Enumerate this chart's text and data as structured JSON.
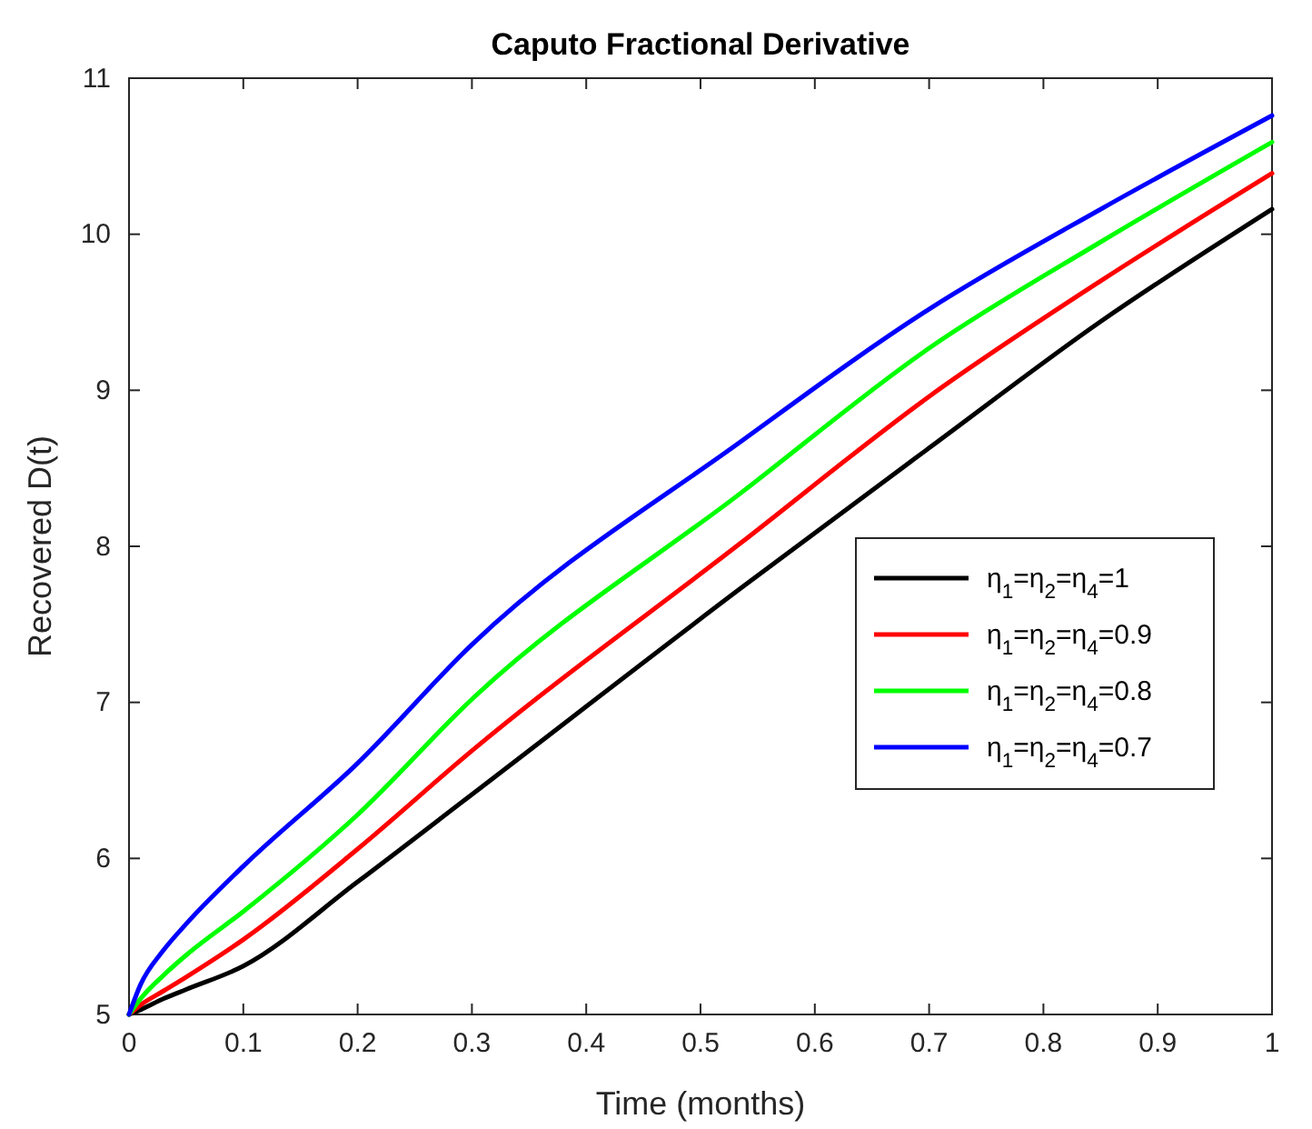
{
  "chart_data": {
    "type": "line",
    "title": "Caputo Fractional Derivative",
    "xlabel": "Time (months)",
    "ylabel": "Recovered D(t)",
    "x": [
      0,
      0.01,
      0.03,
      0.05,
      0.1,
      0.2,
      0.3,
      0.535,
      0.7,
      0.85,
      1
    ],
    "series": [
      {
        "name": "η$_{1}$=η$_{2}$=η$_{4}$=1",
        "color": "#000000",
        "values": [
          5,
          5.03,
          5.1,
          5.16,
          5.31,
          5.85,
          6.41,
          7.73,
          8.63,
          9.44,
          10.16
        ]
      },
      {
        "name": "η$_{1}$=η$_{2}$=η$_{4}$=0.9",
        "color": "#ff0000",
        "values": [
          5,
          5.06,
          5.15,
          5.24,
          5.48,
          6.06,
          6.69,
          8.02,
          8.96,
          9.7,
          10.39
        ]
      },
      {
        "name": "η$_{1}$=η$_{2}$=η$_{4}$=0.8",
        "color": "#00ff00",
        "values": [
          5,
          5.1,
          5.25,
          5.38,
          5.66,
          6.28,
          7.02,
          8.34,
          9.27,
          9.95,
          10.59
        ]
      },
      {
        "name": "η$_{1}$=η$_{2}$=η$_{4}$=0.7",
        "color": "#0000ff",
        "values": [
          5,
          5.19,
          5.41,
          5.58,
          5.95,
          6.61,
          7.37,
          8.67,
          9.52,
          10.16,
          10.76
        ]
      }
    ],
    "xlim": [
      0,
      1
    ],
    "ylim": [
      5,
      11
    ],
    "xticks": [
      0,
      0.1,
      0.2,
      0.3,
      0.4,
      0.5,
      0.6,
      0.7,
      0.8,
      0.9,
      1
    ],
    "yticks": [
      5,
      6,
      7,
      8,
      9,
      10,
      11
    ],
    "legend": "right",
    "grid": false,
    "marker": "none",
    "line_style": "solid"
  }
}
